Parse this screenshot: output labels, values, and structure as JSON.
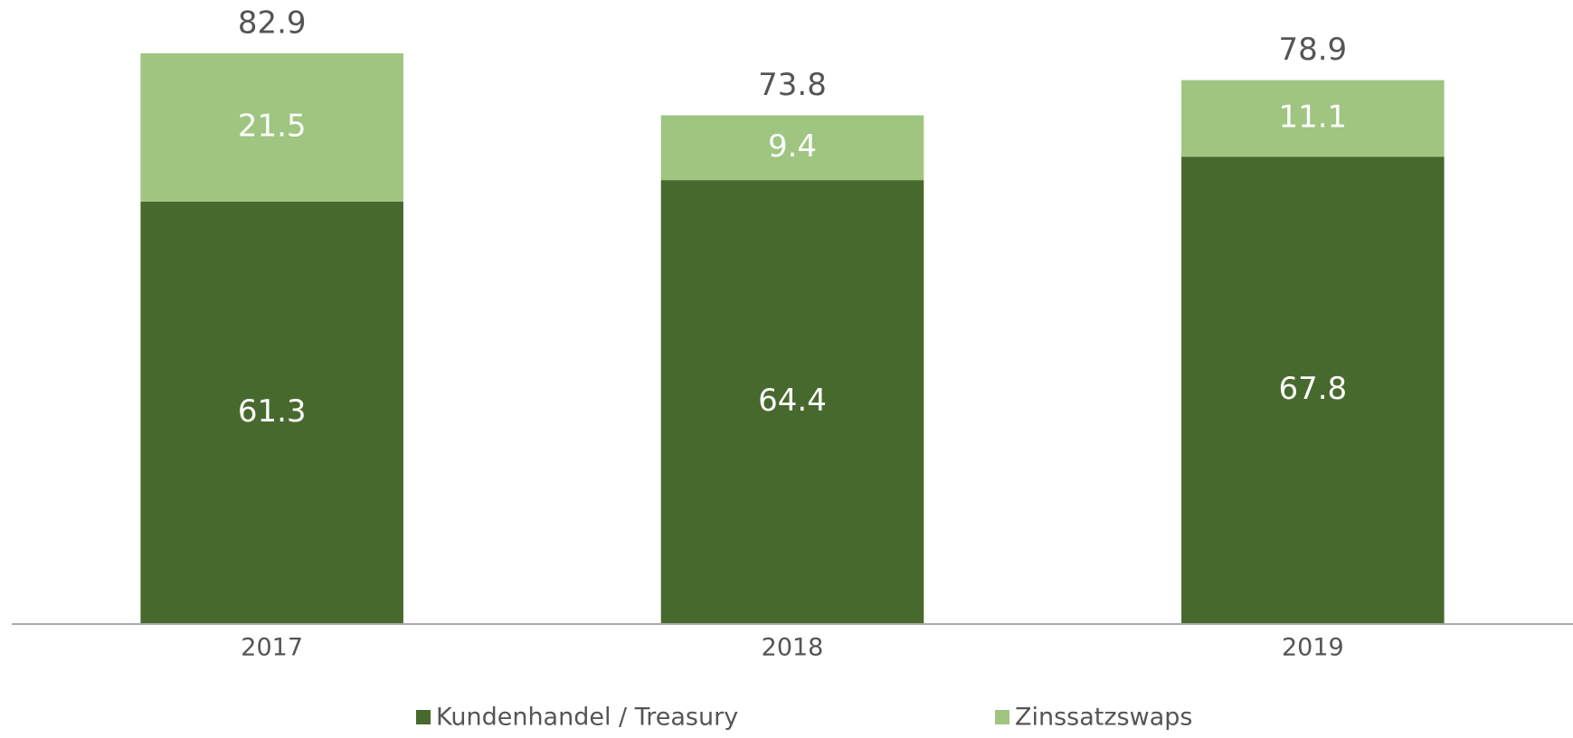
{
  "chart_data": {
    "type": "stacked_bar",
    "categories": [
      "2017",
      "2018",
      "2019"
    ],
    "series": [
      {
        "name": "Kundenhandel / Treasury",
        "color": "#48692e",
        "values": [
          61.3,
          64.4,
          67.8
        ]
      },
      {
        "name": "Zinssatzswaps",
        "color": "#9fc581",
        "values": [
          21.5,
          9.4,
          11.1
        ]
      }
    ],
    "totals": [
      82.9,
      73.8,
      78.9
    ],
    "ylim": [
      0,
      90
    ],
    "legend": "bottom"
  }
}
